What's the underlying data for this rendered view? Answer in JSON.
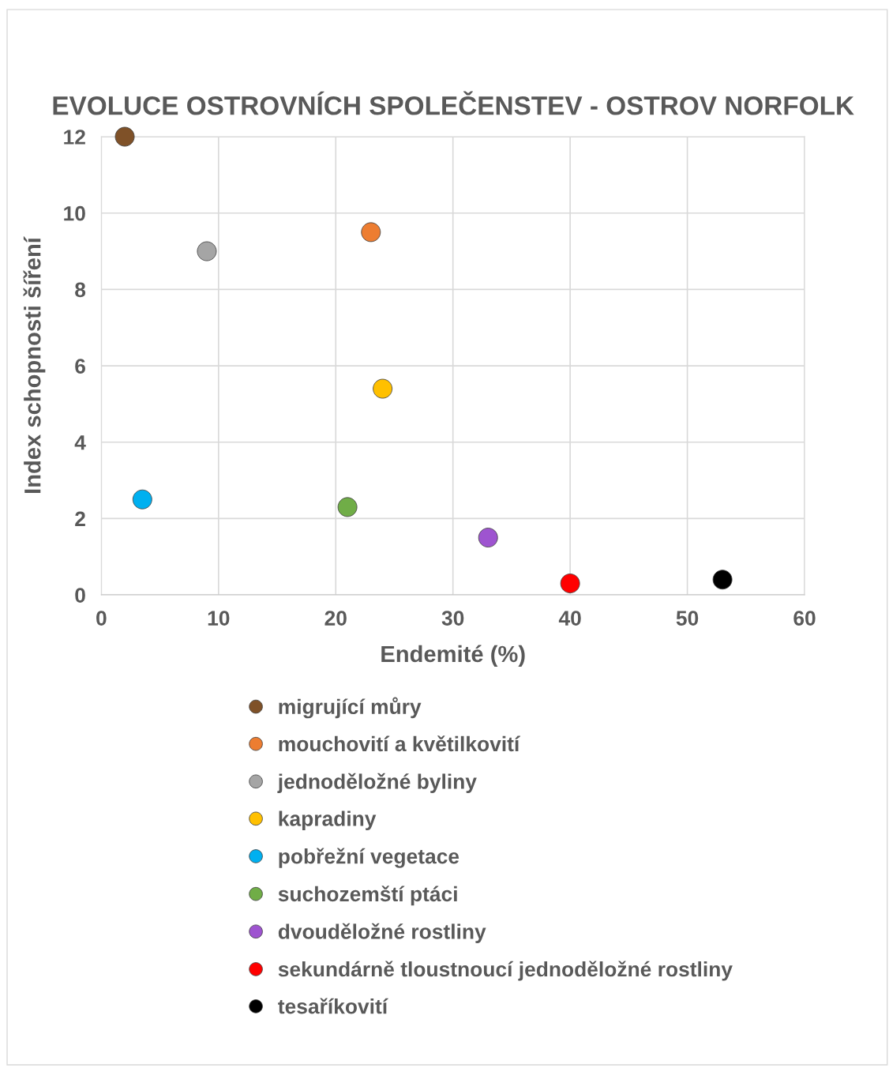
{
  "chart_data": {
    "type": "scatter",
    "title": "EVOLUCE OSTROVNÍCH SPOLEČENSTEV - OSTROV NORFOLK",
    "xlabel": "Endemité (%)",
    "ylabel": "Index schopnosti šíření",
    "series": [
      {
        "name": "migrující můry",
        "color": "#7f5128",
        "x": [
          2
        ],
        "values": [
          12
        ]
      },
      {
        "name": "mouchovití a květilkovití",
        "color": "#ed7d31",
        "x": [
          23
        ],
        "values": [
          9.5
        ]
      },
      {
        "name": "jednoděložné byliny",
        "color": "#a5a5a5",
        "x": [
          9
        ],
        "values": [
          9
        ]
      },
      {
        "name": "kapradiny",
        "color": "#ffc000",
        "x": [
          24
        ],
        "values": [
          5.4
        ]
      },
      {
        "name": "pobřežní vegetace",
        "color": "#00b0f0",
        "x": [
          3.5
        ],
        "values": [
          2.5
        ]
      },
      {
        "name": "suchozemští ptáci",
        "color": "#70ad47",
        "x": [
          21
        ],
        "values": [
          2.3
        ]
      },
      {
        "name": "dvouděložné rostliny",
        "color": "#9e54d0",
        "x": [
          33
        ],
        "values": [
          1.5
        ]
      },
      {
        "name": "sekundárně tloustnoucí jednoděložné rostliny",
        "color": "#ff0000",
        "x": [
          40
        ],
        "values": [
          0.3
        ]
      },
      {
        "name": "tesaříkovití",
        "color": "#000000",
        "x": [
          53
        ],
        "values": [
          0.4
        ]
      }
    ],
    "xlim": [
      0,
      60
    ],
    "xticks": [
      0,
      10,
      20,
      30,
      40,
      50,
      60
    ],
    "ylim": [
      0,
      12
    ],
    "yticks": [
      0,
      2,
      4,
      6,
      8,
      10,
      12
    ],
    "grid": true,
    "legend": "bottom",
    "marker": "circle"
  }
}
